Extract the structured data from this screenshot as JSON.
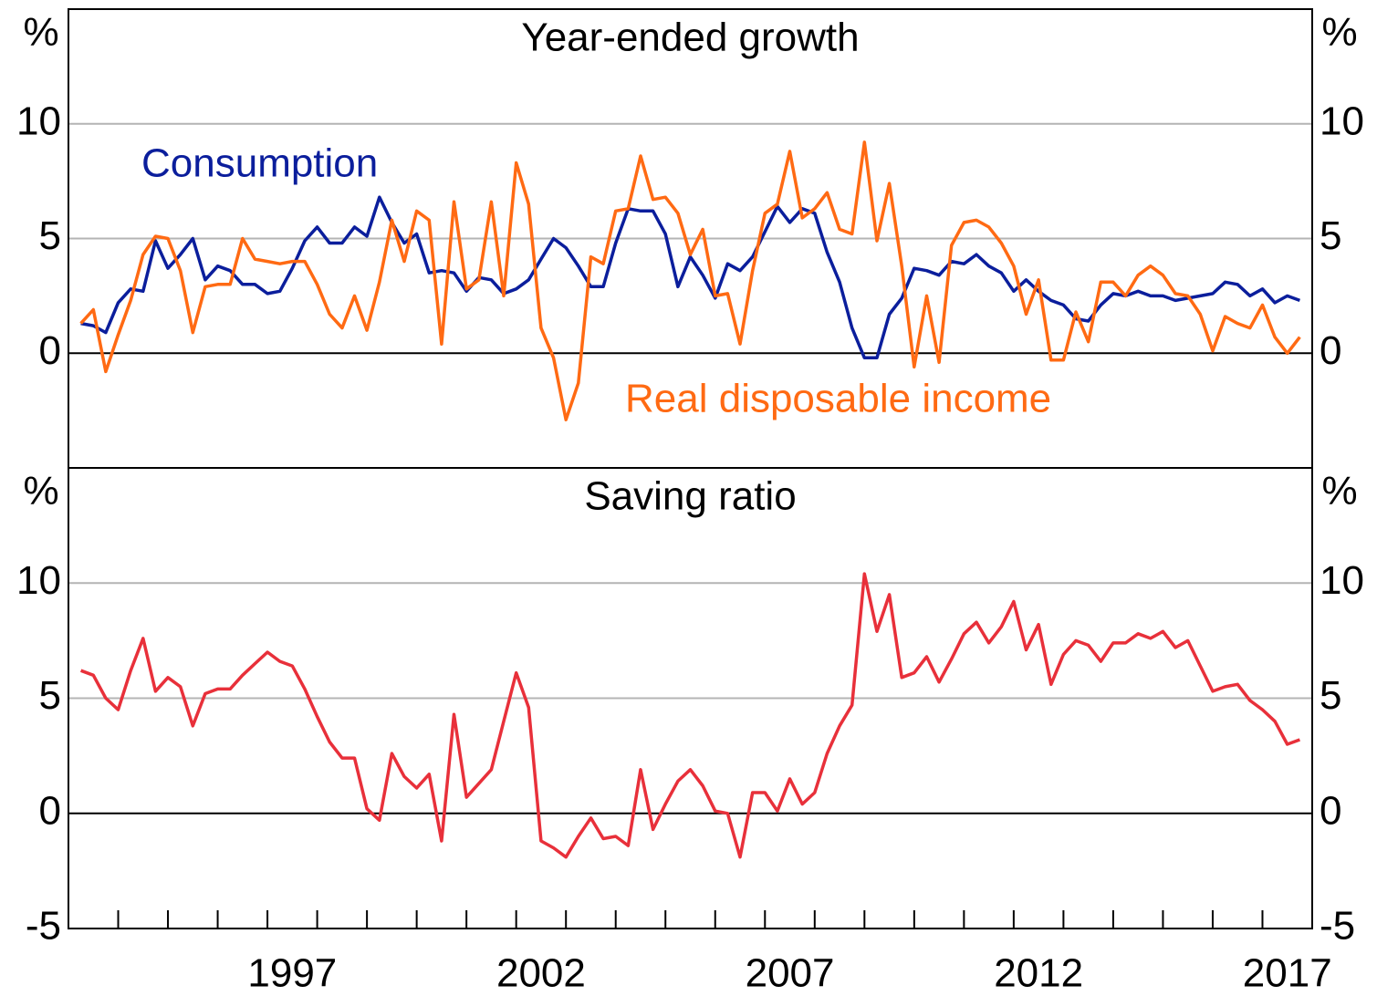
{
  "chart_data": [
    {
      "type": "line",
      "title": "Year-ended growth",
      "unit": "%",
      "x": [
        1993.25,
        1993.5,
        1993.75,
        1994,
        1994.25,
        1994.5,
        1994.75,
        1995,
        1995.25,
        1995.5,
        1995.75,
        1996,
        1996.25,
        1996.5,
        1996.75,
        1997,
        1997.25,
        1997.5,
        1997.75,
        1998,
        1998.25,
        1998.5,
        1998.75,
        1999,
        1999.25,
        1999.5,
        1999.75,
        2000,
        2000.25,
        2000.5,
        2000.75,
        2001,
        2001.25,
        2001.5,
        2001.75,
        2002,
        2002.25,
        2002.5,
        2002.75,
        2003,
        2003.25,
        2003.5,
        2003.75,
        2004,
        2004.25,
        2004.5,
        2004.75,
        2005,
        2005.25,
        2005.5,
        2005.75,
        2006,
        2006.25,
        2006.5,
        2006.75,
        2007,
        2007.25,
        2007.5,
        2007.75,
        2008,
        2008.25,
        2008.5,
        2008.75,
        2009,
        2009.25,
        2009.5,
        2009.75,
        2010,
        2010.25,
        2010.5,
        2010.75,
        2011,
        2011.25,
        2011.5,
        2011.75,
        2012,
        2012.25,
        2012.5,
        2012.75,
        2013,
        2013.25,
        2013.5,
        2013.75,
        2014,
        2014.25,
        2014.5,
        2014.75,
        2015,
        2015.25,
        2015.5,
        2015.75,
        2016,
        2016.25,
        2016.5,
        2016.75,
        2017,
        2017.25,
        2017.5,
        2017.75
      ],
      "series": [
        {
          "name": "Consumption",
          "color": "#0b1e9c",
          "values": [
            1.3,
            1.2,
            0.9,
            2.2,
            2.8,
            2.7,
            4.9,
            3.7,
            4.3,
            5.0,
            3.2,
            3.8,
            3.6,
            3.0,
            3.0,
            2.6,
            2.7,
            3.7,
            4.9,
            5.5,
            4.8,
            4.8,
            5.5,
            5.1,
            6.8,
            5.7,
            4.8,
            5.2,
            3.5,
            3.6,
            3.5,
            2.7,
            3.3,
            3.2,
            2.6,
            2.8,
            3.2,
            4.1,
            5.0,
            4.6,
            3.8,
            2.9,
            2.9,
            4.8,
            6.3,
            6.2,
            6.2,
            5.2,
            2.9,
            4.2,
            3.4,
            2.4,
            3.9,
            3.6,
            4.2,
            5.3,
            6.4,
            5.7,
            6.3,
            6.1,
            4.4,
            3.1,
            1.1,
            -0.2,
            -0.2,
            1.7,
            2.4,
            3.7,
            3.6,
            3.4,
            4.0,
            3.9,
            4.3,
            3.8,
            3.5,
            2.7,
            3.2,
            2.7,
            2.3,
            2.1,
            1.5,
            1.4,
            2.1,
            2.6,
            2.5,
            2.7,
            2.5,
            2.5,
            2.3,
            2.4,
            2.5,
            2.6,
            3.1,
            3.0,
            2.5,
            2.8,
            2.2,
            2.5,
            2.3
          ]
        },
        {
          "name": "Real disposable income",
          "color": "#ff6a13",
          "values": [
            1.3,
            1.9,
            -0.8,
            0.8,
            2.3,
            4.3,
            5.1,
            5.0,
            3.6,
            0.9,
            2.9,
            3.0,
            3.0,
            5.0,
            4.1,
            4.0,
            3.9,
            4.0,
            4.0,
            3.0,
            1.7,
            1.1,
            2.5,
            1.0,
            3.1,
            5.8,
            4.0,
            6.2,
            5.8,
            0.4,
            6.6,
            2.8,
            3.2,
            6.6,
            2.5,
            8.3,
            6.5,
            1.1,
            -0.2,
            -2.9,
            -1.3,
            4.2,
            3.9,
            6.2,
            6.3,
            8.6,
            6.7,
            6.8,
            6.1,
            4.3,
            5.4,
            2.5,
            2.6,
            0.4,
            3.6,
            6.1,
            6.5,
            8.8,
            5.9,
            6.3,
            7.0,
            5.4,
            5.2,
            9.2,
            4.9,
            7.4,
            3.8,
            -0.6,
            2.5,
            -0.4,
            4.7,
            5.7,
            5.8,
            5.5,
            4.8,
            3.8,
            1.7,
            3.2,
            -0.3,
            -0.3,
            1.8,
            0.5,
            3.1,
            3.1,
            2.5,
            3.4,
            3.8,
            3.4,
            2.6,
            2.5,
            1.7,
            0.1,
            1.6,
            1.3,
            1.1,
            2.1,
            0.7,
            0.0,
            0.7
          ]
        }
      ],
      "xlim": [
        1993,
        2018
      ],
      "ylim": [
        -5,
        15
      ],
      "yticks": [
        0,
        5,
        10
      ],
      "grid": true
    },
    {
      "type": "line",
      "title": "Saving ratio",
      "unit": "%",
      "x": [
        1993.25,
        1993.5,
        1993.75,
        1994,
        1994.25,
        1994.5,
        1994.75,
        1995,
        1995.25,
        1995.5,
        1995.75,
        1996,
        1996.25,
        1996.5,
        1996.75,
        1997,
        1997.25,
        1997.5,
        1997.75,
        1998,
        1998.25,
        1998.5,
        1998.75,
        1999,
        1999.25,
        1999.5,
        1999.75,
        2000,
        2000.25,
        2000.5,
        2000.75,
        2001,
        2001.25,
        2001.5,
        2001.75,
        2002,
        2002.25,
        2002.5,
        2002.75,
        2003,
        2003.25,
        2003.5,
        2003.75,
        2004,
        2004.25,
        2004.5,
        2004.75,
        2005,
        2005.25,
        2005.5,
        2005.75,
        2006,
        2006.25,
        2006.5,
        2006.75,
        2007,
        2007.25,
        2007.5,
        2007.75,
        2008,
        2008.25,
        2008.5,
        2008.75,
        2009,
        2009.25,
        2009.5,
        2009.75,
        2010,
        2010.25,
        2010.5,
        2010.75,
        2011,
        2011.25,
        2011.5,
        2011.75,
        2012,
        2012.25,
        2012.5,
        2012.75,
        2013,
        2013.25,
        2013.5,
        2013.75,
        2014,
        2014.25,
        2014.5,
        2014.75,
        2015,
        2015.25,
        2015.5,
        2015.75,
        2016,
        2016.25,
        2016.5,
        2016.75,
        2017,
        2017.25,
        2017.5,
        2017.75
      ],
      "series": [
        {
          "color": "#e8303a",
          "values": [
            6.2,
            6.0,
            5.0,
            4.5,
            6.2,
            7.6,
            5.3,
            5.9,
            5.5,
            3.8,
            5.2,
            5.4,
            5.4,
            6.0,
            6.5,
            7.0,
            6.6,
            6.4,
            5.4,
            4.2,
            3.1,
            2.4,
            2.4,
            0.2,
            -0.3,
            2.6,
            1.6,
            1.1,
            1.7,
            -1.2,
            4.3,
            0.7,
            1.3,
            1.9,
            4.0,
            6.1,
            4.6,
            -1.2,
            -1.5,
            -1.9,
            -1.0,
            -0.2,
            -1.1,
            -1.0,
            -1.4,
            1.9,
            -0.7,
            0.4,
            1.4,
            1.9,
            1.2,
            0.1,
            0.0,
            -1.9,
            0.9,
            0.9,
            0.1,
            1.5,
            0.4,
            0.9,
            2.6,
            3.8,
            4.7,
            10.4,
            7.9,
            9.5,
            5.9,
            6.1,
            6.8,
            5.7,
            6.7,
            7.8,
            8.3,
            7.4,
            8.1,
            9.2,
            7.1,
            8.2,
            5.6,
            6.9,
            7.5,
            7.3,
            6.6,
            7.4,
            7.4,
            7.8,
            7.6,
            7.9,
            7.2,
            7.5,
            6.4,
            5.3,
            5.5,
            5.6,
            4.9,
            4.5,
            4.0,
            3.0,
            3.2
          ]
        }
      ],
      "xlim": [
        1993,
        2018
      ],
      "ylim": [
        -5,
        15
      ],
      "yticks": [
        -5,
        0,
        5,
        10
      ],
      "grid": true,
      "xticks": [
        1994,
        1995,
        1996,
        1997,
        1998,
        1999,
        2000,
        2001,
        2002,
        2003,
        2004,
        2005,
        2006,
        2007,
        2008,
        2009,
        2010,
        2011,
        2012,
        2013,
        2014,
        2015,
        2016,
        2017
      ],
      "xtick_labels": [
        {
          "value": 1997.5,
          "label": "1997"
        },
        {
          "value": 2002.5,
          "label": "2002"
        },
        {
          "value": 2007.5,
          "label": "2007"
        },
        {
          "value": 2012.5,
          "label": "2012"
        },
        {
          "value": 2017.5,
          "label": "2017"
        }
      ]
    }
  ]
}
